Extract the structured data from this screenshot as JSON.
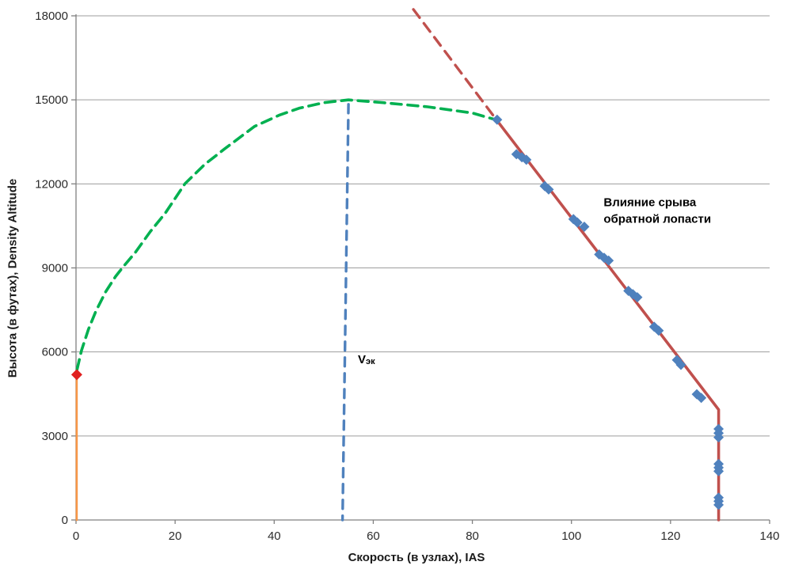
{
  "chart_data": {
    "type": "line",
    "title": "",
    "xlabel": "Скорость (в узлах), IAS",
    "ylabel": "Высота (в футах), Density Altitude",
    "xlim": [
      0,
      140
    ],
    "ylim": [
      0,
      18000
    ],
    "xticks": [
      0,
      20,
      40,
      60,
      80,
      100,
      120,
      140
    ],
    "yticks": [
      0,
      3000,
      6000,
      9000,
      12000,
      15000,
      18000
    ],
    "grid": "horizontal",
    "legend": "none",
    "colors": {
      "gridline": "#9d9d9d",
      "axis": "#808080",
      "tick_text": "#2b2b2b",
      "green_curve": "#00B050",
      "red_line": "#C0504D",
      "blue_marker": "#4F81BD",
      "blue_dash": "#4F81BD",
      "orange_line": "#F79646",
      "red_marker": "#E02020",
      "annotation_text": "#000000"
    },
    "series": [
      {
        "name": "zero-speed-segment",
        "kind": "line",
        "color_key": "orange_line",
        "dash": null,
        "width": 2.6,
        "points": [
          [
            0.15,
            5150
          ],
          [
            0.15,
            0
          ]
        ]
      },
      {
        "name": "hv-envelope-curve",
        "kind": "line",
        "color_key": "green_curve",
        "dash": [
          13,
          8
        ],
        "width": 3.6,
        "points": [
          [
            0.2,
            5370
          ],
          [
            1.1,
            6050
          ],
          [
            2.5,
            6800
          ],
          [
            4,
            7450
          ],
          [
            6,
            8150
          ],
          [
            8,
            8700
          ],
          [
            9.4,
            9010
          ],
          [
            12,
            9560
          ],
          [
            15,
            10300
          ],
          [
            18,
            10950
          ],
          [
            22,
            12010
          ],
          [
            26,
            12700
          ],
          [
            30,
            13250
          ],
          [
            36,
            14050
          ],
          [
            41,
            14450
          ],
          [
            45,
            14700
          ],
          [
            50,
            14900
          ],
          [
            55,
            15000
          ],
          [
            62,
            14900
          ],
          [
            71,
            14750
          ],
          [
            80,
            14530
          ],
          [
            84.9,
            14280
          ]
        ]
      },
      {
        "name": "stall-line-extension",
        "kind": "line",
        "color_key": "red_line",
        "dash": [
          13,
          9
        ],
        "width": 3.4,
        "points": [
          [
            68.1,
            18230
          ],
          [
            84.9,
            14280
          ]
        ]
      },
      {
        "name": "stall-boundary-line",
        "kind": "line",
        "color_key": "red_line",
        "dash": null,
        "width": 3.6,
        "points": [
          [
            84.9,
            14280
          ],
          [
            129.7,
            3940
          ],
          [
            129.7,
            0
          ]
        ]
      },
      {
        "name": "vek-reference-line",
        "kind": "line",
        "color_key": "blue_dash",
        "dash": [
          11,
          9
        ],
        "width": 3.4,
        "points": [
          [
            55.0,
            14840
          ],
          [
            53.8,
            0
          ]
        ]
      },
      {
        "name": "flight-test-points",
        "kind": "scatter",
        "color_key": "blue_marker",
        "marker": "diamond",
        "size": 6.5,
        "points": [
          [
            85,
            14290
          ],
          [
            88.9,
            13060
          ],
          [
            90,
            12950
          ],
          [
            90.9,
            12860
          ],
          [
            94.6,
            11920
          ],
          [
            95.4,
            11800
          ],
          [
            100.4,
            10740
          ],
          [
            101.2,
            10620
          ],
          [
            102.6,
            10470
          ],
          [
            105.6,
            9480
          ],
          [
            106.6,
            9360
          ],
          [
            107.5,
            9260
          ],
          [
            111.5,
            8180
          ],
          [
            112.4,
            8060
          ],
          [
            113.3,
            7950
          ],
          [
            116.7,
            6900
          ],
          [
            117.6,
            6760
          ],
          [
            121.3,
            5710
          ],
          [
            122.1,
            5540
          ],
          [
            125.3,
            4490
          ],
          [
            126.2,
            4360
          ],
          [
            129.7,
            3250
          ],
          [
            129.7,
            3100
          ],
          [
            129.7,
            2950
          ],
          [
            129.7,
            2000
          ],
          [
            129.7,
            1870
          ],
          [
            129.7,
            1740
          ],
          [
            129.7,
            800
          ],
          [
            129.7,
            670
          ],
          [
            129.7,
            540
          ]
        ]
      },
      {
        "name": "hover-point",
        "kind": "scatter",
        "color_key": "red_marker",
        "marker": "diamond",
        "size": 7,
        "points": [
          [
            0.15,
            5190
          ]
        ]
      }
    ],
    "annotations": [
      {
        "name": "stall-label",
        "lines": [
          "Влияние срыва",
          "обратной лопасти"
        ],
        "x": 106.5,
        "y": 11200,
        "line_spacing_px": 21,
        "align": "start"
      },
      {
        "name": "vek-label",
        "main": "V",
        "sub": "эк",
        "x": 56.9,
        "y": 5600,
        "align": "start"
      }
    ]
  }
}
